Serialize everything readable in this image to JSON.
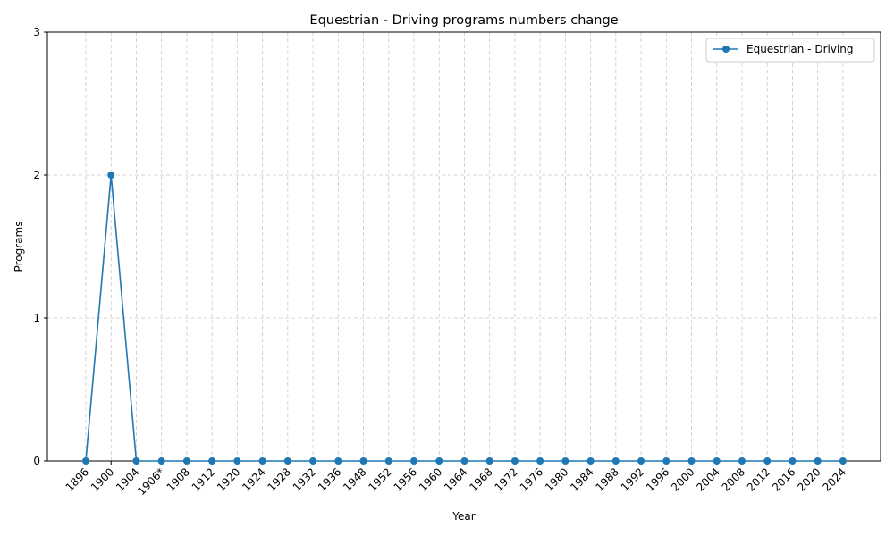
{
  "chart_data": {
    "type": "line",
    "title": "Equestrian - Driving programs numbers change",
    "xlabel": "Year",
    "ylabel": "Programs",
    "categories": [
      "1896",
      "1900",
      "1904",
      "1906*",
      "1908",
      "1912",
      "1920",
      "1924",
      "1928",
      "1932",
      "1936",
      "1948",
      "1952",
      "1956",
      "1960",
      "1964",
      "1968",
      "1972",
      "1976",
      "1980",
      "1984",
      "1988",
      "1992",
      "1996",
      "2000",
      "2004",
      "2008",
      "2012",
      "2016",
      "2020",
      "2024"
    ],
    "series": [
      {
        "name": "Equestrian - Driving",
        "values": [
          0,
          2,
          0,
          0,
          0,
          0,
          0,
          0,
          0,
          0,
          0,
          0,
          0,
          0,
          0,
          0,
          0,
          0,
          0,
          0,
          0,
          0,
          0,
          0,
          0,
          0,
          0,
          0,
          0,
          0,
          0
        ],
        "color": "#1f77b4"
      }
    ],
    "yticks": [
      "0",
      "1",
      "2",
      "3"
    ],
    "ylim": [
      0,
      3
    ],
    "grid": true,
    "legend": "top-right"
  }
}
